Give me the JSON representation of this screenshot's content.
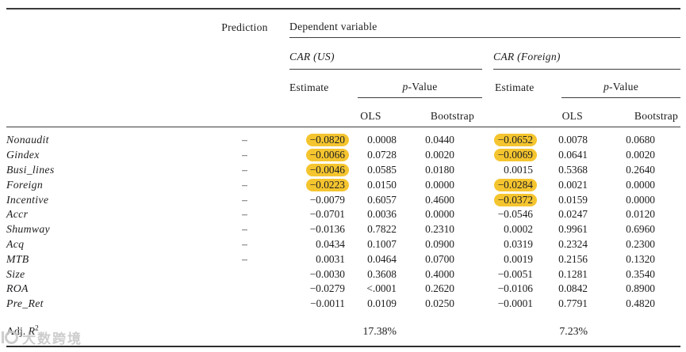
{
  "table": {
    "header": {
      "prediction": "Prediction",
      "dependent_variable": "Dependent variable",
      "group_us": "CAR (US)",
      "group_foreign": "CAR (Foreign)",
      "estimate": "Estimate",
      "p_value_letter": "p",
      "p_value_rest": "-Value",
      "ols": "OLS",
      "bootstrap": "Bootstrap"
    },
    "rows": [
      {
        "label": "Nonaudit",
        "prediction": "–",
        "us": {
          "estimate": "−0.0820",
          "highlight": true,
          "ols": "0.0008",
          "bootstrap": "0.0440"
        },
        "foreign": {
          "estimate": "−0.0652",
          "highlight": true,
          "ols": "0.0078",
          "bootstrap": "0.0680"
        }
      },
      {
        "label": "Gindex",
        "prediction": "–",
        "us": {
          "estimate": "−0.0066",
          "highlight": true,
          "ols": "0.0728",
          "bootstrap": "0.0020"
        },
        "foreign": {
          "estimate": "−0.0069",
          "highlight": true,
          "ols": "0.0641",
          "bootstrap": "0.0020"
        }
      },
      {
        "label": "Busi_lines",
        "prediction": "–",
        "us": {
          "estimate": "−0.0046",
          "highlight": true,
          "ols": "0.0585",
          "bootstrap": "0.0180"
        },
        "foreign": {
          "estimate": "0.0015",
          "highlight": false,
          "ols": "0.5368",
          "bootstrap": "0.2640"
        }
      },
      {
        "label": "Foreign",
        "prediction": "–",
        "us": {
          "estimate": "−0.0223",
          "highlight": true,
          "ols": "0.0150",
          "bootstrap": "0.0000"
        },
        "foreign": {
          "estimate": "−0.0284",
          "highlight": true,
          "ols": "0.0021",
          "bootstrap": "0.0000"
        }
      },
      {
        "label": "Incentive",
        "prediction": "–",
        "us": {
          "estimate": "−0.0079",
          "highlight": false,
          "ols": "0.6057",
          "bootstrap": "0.4600"
        },
        "foreign": {
          "estimate": "−0.0372",
          "highlight": true,
          "ols": "0.0159",
          "bootstrap": "0.0000"
        }
      },
      {
        "label": "Accr",
        "prediction": "–",
        "us": {
          "estimate": "−0.0701",
          "highlight": false,
          "ols": "0.0036",
          "bootstrap": "0.0000"
        },
        "foreign": {
          "estimate": "−0.0546",
          "highlight": false,
          "ols": "0.0247",
          "bootstrap": "0.0120"
        }
      },
      {
        "label": "Shumway",
        "prediction": "–",
        "us": {
          "estimate": "−0.0136",
          "highlight": false,
          "ols": "0.7822",
          "bootstrap": "0.2310"
        },
        "foreign": {
          "estimate": "0.0002",
          "highlight": false,
          "ols": "0.9961",
          "bootstrap": "0.6960"
        }
      },
      {
        "label": "Acq",
        "prediction": "–",
        "us": {
          "estimate": "0.0434",
          "highlight": false,
          "ols": "0.1007",
          "bootstrap": "0.0900"
        },
        "foreign": {
          "estimate": "0.0319",
          "highlight": false,
          "ols": "0.2324",
          "bootstrap": "0.2300"
        }
      },
      {
        "label": "MTB",
        "prediction": "–",
        "us": {
          "estimate": "0.0031",
          "highlight": false,
          "ols": "0.0464",
          "bootstrap": "0.0700"
        },
        "foreign": {
          "estimate": "0.0019",
          "highlight": false,
          "ols": "0.2156",
          "bootstrap": "0.1320"
        }
      },
      {
        "label": "Size",
        "prediction": "",
        "us": {
          "estimate": "−0.0030",
          "highlight": false,
          "ols": "0.3608",
          "bootstrap": "0.4000"
        },
        "foreign": {
          "estimate": "−0.0051",
          "highlight": false,
          "ols": "0.1281",
          "bootstrap": "0.3540"
        }
      },
      {
        "label": "ROA",
        "prediction": "",
        "us": {
          "estimate": "−0.0279",
          "highlight": false,
          "ols": "<.0001",
          "bootstrap": "0.2620"
        },
        "foreign": {
          "estimate": "−0.0106",
          "highlight": false,
          "ols": "0.0842",
          "bootstrap": "0.8900"
        }
      },
      {
        "label": "Pre_Ret",
        "prediction": "",
        "us": {
          "estimate": "−0.0011",
          "highlight": false,
          "ols": "0.0109",
          "bootstrap": "0.0250"
        },
        "foreign": {
          "estimate": "−0.0001",
          "highlight": false,
          "ols": "0.7791",
          "bootstrap": "0.4820"
        }
      }
    ],
    "footer": {
      "adj_prefix": "Adj. ",
      "adj_r": "R",
      "adj_sup": "2",
      "us_ols_value": "17.38%",
      "foreign_ols_value": "7.23%"
    }
  },
  "highlight_color": "#F5C52F",
  "watermark": {
    "text": "大数跨境"
  }
}
